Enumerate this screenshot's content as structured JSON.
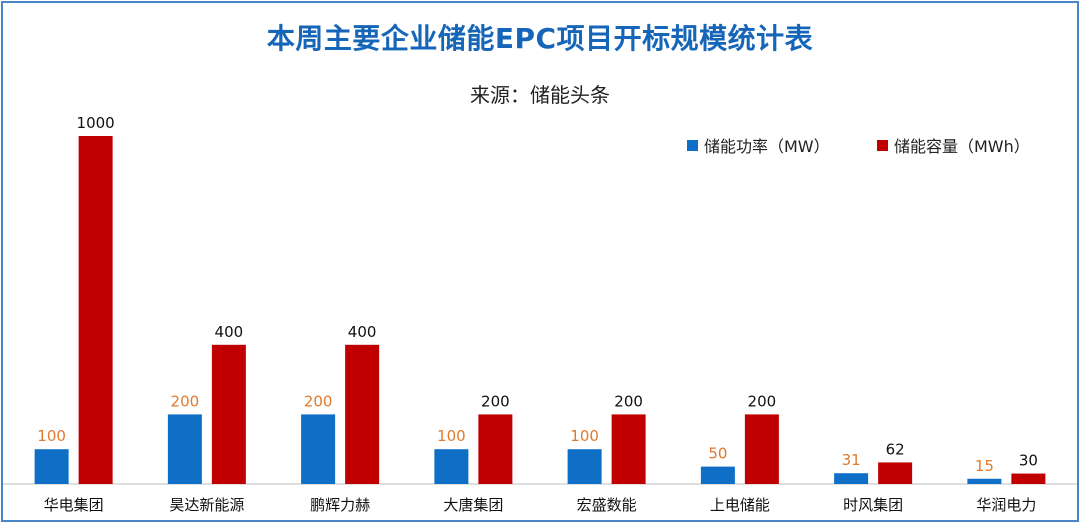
{
  "chart_data": {
    "type": "bar",
    "title": "本周主要企业储能EPC项目开标规模统计表",
    "subtitle": "来源：储能头条",
    "categories": [
      "华电集团",
      "昊达新能源",
      "鹏辉力赫",
      "大唐集团",
      "宏盛数能",
      "上电储能",
      "时风集团",
      "华润电力"
    ],
    "series": [
      {
        "name": "储能功率（MW）",
        "values": [
          100,
          200,
          200,
          100,
          100,
          50,
          31,
          15
        ],
        "color": "#0f6fc6",
        "label_color": "#e07a2e"
      },
      {
        "name": "储能容量（MWh）",
        "values": [
          1000,
          400,
          400,
          200,
          200,
          200,
          62,
          30
        ],
        "color": "#c00000",
        "label_color": "#111111"
      }
    ],
    "ylim": [
      0,
      1000
    ],
    "grid": false,
    "legend": "top-right",
    "axis_color": "#bfbfbf"
  }
}
